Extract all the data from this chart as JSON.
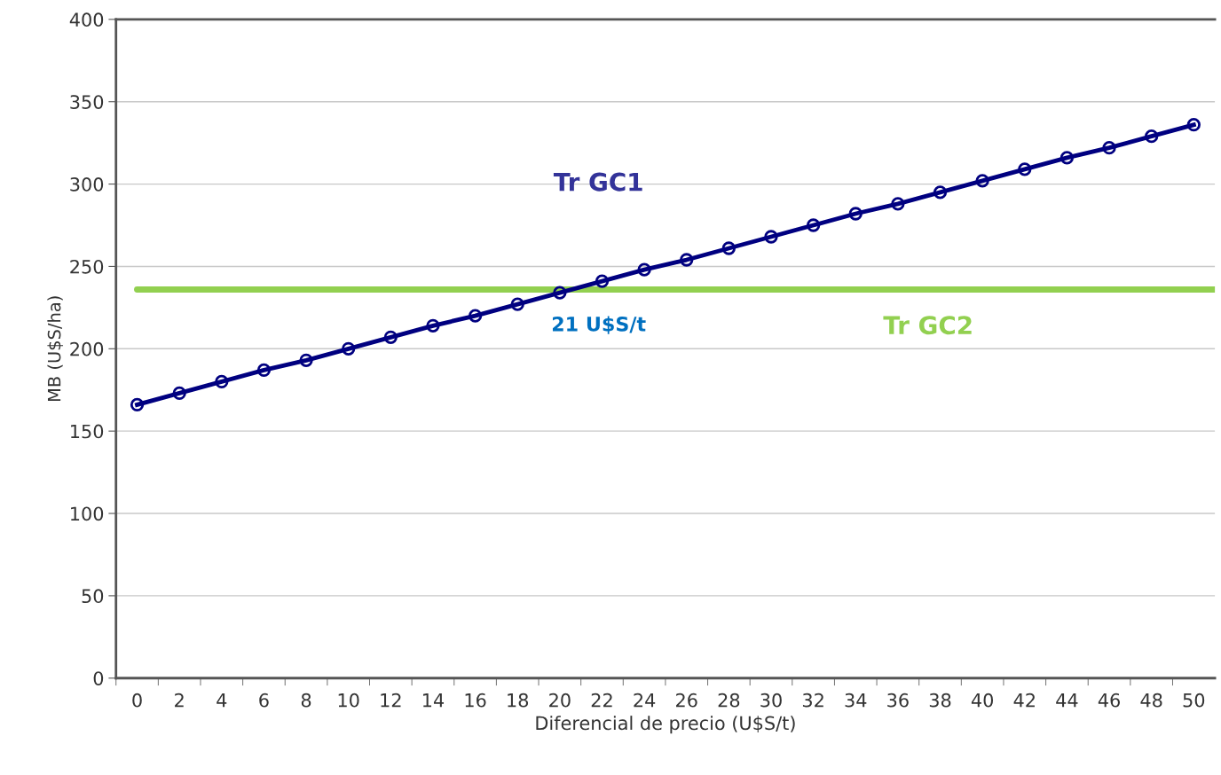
{
  "chart_data": {
    "type": "line",
    "xlabel": "Diferencial de precio (U$S/t)",
    "ylabel": "MB (U$S/ha)",
    "categories": [
      "0",
      "2",
      "4",
      "6",
      "8",
      "10",
      "12",
      "14",
      "16",
      "18",
      "20",
      "22",
      "24",
      "26",
      "28",
      "30",
      "32",
      "34",
      "36",
      "38",
      "40",
      "42",
      "44",
      "46",
      "48",
      "50"
    ],
    "series": [
      {
        "name": "Tr GC1",
        "color": "#000080",
        "values": [
          166,
          173,
          180,
          187,
          193,
          200,
          207,
          214,
          220,
          227,
          234,
          241,
          248,
          254,
          261,
          268,
          275,
          282,
          288,
          295,
          302,
          309,
          316,
          322,
          329,
          336
        ]
      }
    ],
    "ref_lines": [
      {
        "axis": "y",
        "value": 236,
        "label": "Tr GC2",
        "color": "#92d050"
      }
    ],
    "annotations": [
      "21 U$S/t"
    ],
    "ylim": [
      0,
      400
    ],
    "yticks": [
      0,
      50,
      100,
      150,
      200,
      250,
      300,
      350,
      400
    ],
    "grid": "y",
    "marker": "circle",
    "line_style": "solid",
    "legend": false
  }
}
